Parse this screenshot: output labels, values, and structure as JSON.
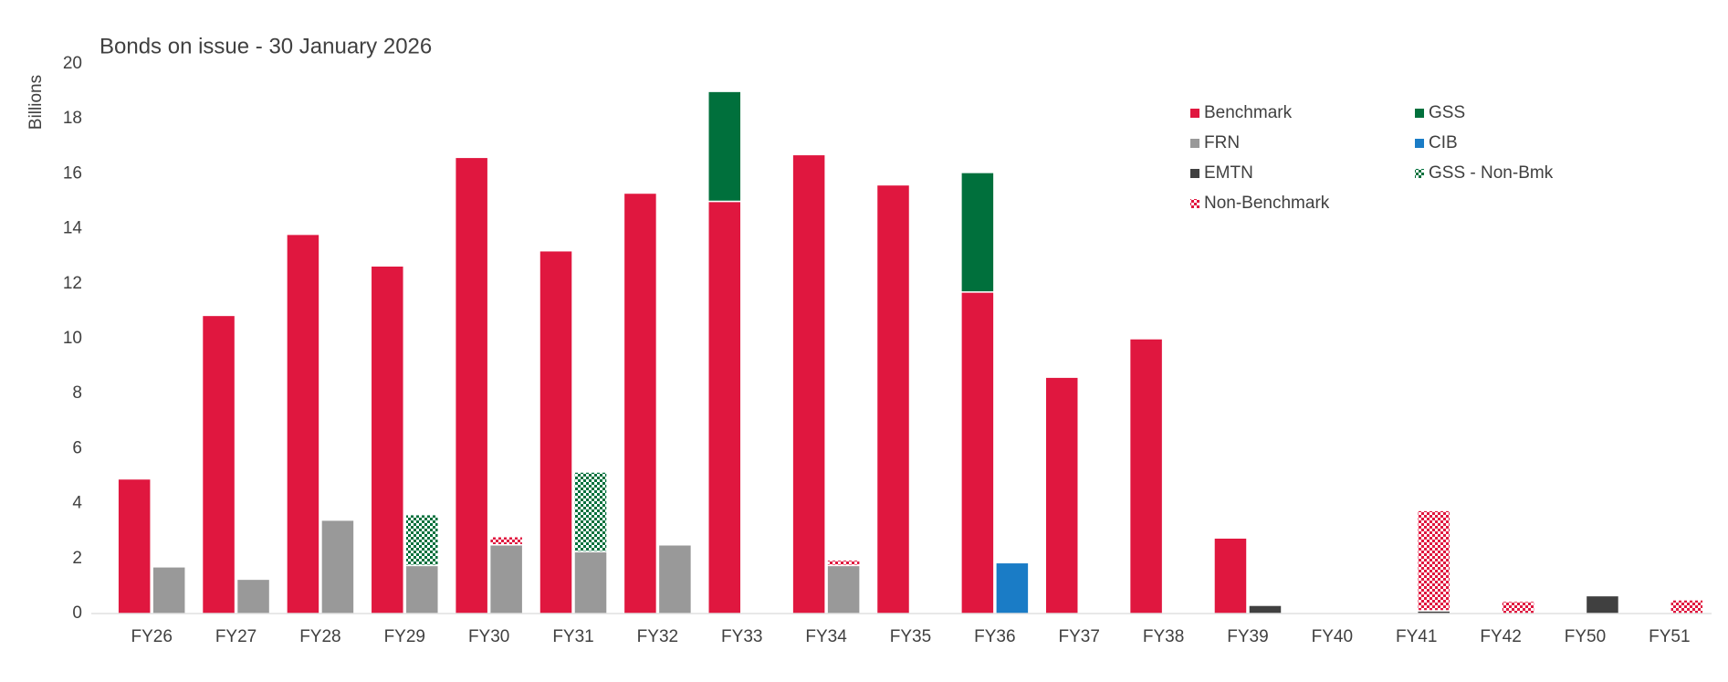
{
  "chart_data": {
    "type": "stacked-bar",
    "title": "Bonds on issue - 30 January 2026",
    "y_label": "Billions",
    "categories": [
      "FY26",
      "FY27",
      "FY28",
      "FY29",
      "FY30",
      "FY31",
      "FY32",
      "FY33",
      "FY34",
      "FY35",
      "FY36",
      "FY37",
      "FY38",
      "FY39",
      "FY40",
      "FY41",
      "FY42",
      "FY50",
      "FY51"
    ],
    "series": [
      {
        "name": "Benchmark",
        "color": "#e0173f",
        "values": [
          4.9,
          10.85,
          13.8,
          12.65,
          16.6,
          13.2,
          15.3,
          15.0,
          16.7,
          15.6,
          11.7,
          8.6,
          10.0,
          2.75,
          null,
          null,
          null,
          null,
          null
        ]
      },
      {
        "name": "GSS",
        "color": "#00703c",
        "values": [
          null,
          null,
          null,
          null,
          null,
          null,
          null,
          4.0,
          null,
          null,
          4.35,
          null,
          null,
          null,
          null,
          null,
          null,
          null,
          null
        ]
      },
      {
        "name": "FRN",
        "color": "#999999",
        "values": [
          1.7,
          1.25,
          3.4,
          1.75,
          2.5,
          2.25,
          2.5,
          null,
          1.75,
          null,
          null,
          null,
          null,
          null,
          null,
          null,
          null,
          null,
          null
        ]
      },
      {
        "name": "CIB",
        "color": "#1a7cc6",
        "values": [
          null,
          null,
          null,
          null,
          null,
          null,
          null,
          null,
          null,
          null,
          1.85,
          null,
          null,
          null,
          null,
          null,
          null,
          null,
          null
        ]
      },
      {
        "name": "EMTN",
        "color": "#404040",
        "values": [
          null,
          null,
          null,
          null,
          null,
          null,
          null,
          null,
          null,
          null,
          null,
          null,
          null,
          0.3,
          null,
          0.1,
          null,
          0.65,
          null
        ]
      },
      {
        "name": "GSS - Non-Bmk",
        "color": "#00703c",
        "pattern": "checker",
        "values": [
          null,
          null,
          null,
          1.85,
          null,
          2.9,
          null,
          null,
          null,
          null,
          null,
          null,
          null,
          null,
          null,
          null,
          null,
          null,
          null
        ]
      },
      {
        "name": "Non-Benchmark",
        "color": "#e0173f",
        "pattern": "checker",
        "values": [
          null,
          null,
          null,
          null,
          0.3,
          null,
          null,
          null,
          0.2,
          null,
          null,
          null,
          null,
          null,
          null,
          3.65,
          0.45,
          null,
          0.5
        ]
      }
    ],
    "ylim": [
      0,
      20
    ],
    "yticks": [
      0,
      2,
      4,
      6,
      8,
      10,
      12,
      14,
      16,
      18,
      20
    ],
    "grid": false
  }
}
